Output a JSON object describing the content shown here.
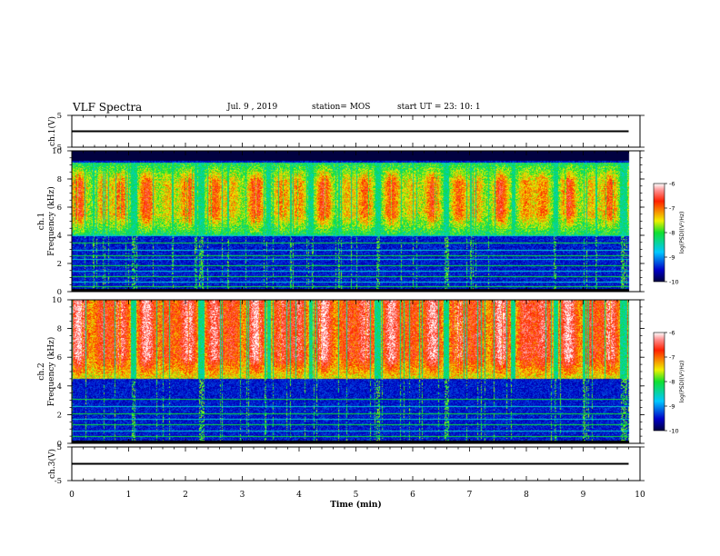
{
  "header": {
    "title": "VLF Spectra",
    "date": "Jul. 9 , 2019",
    "station": "station= MOS",
    "start": "start UT = 23: 10: 1"
  },
  "chart_data": [
    {
      "type": "line",
      "panel": "ch.1(V)",
      "ylabel": "ch.1(V)",
      "ylim": [
        -5,
        5
      ],
      "yticks": [
        "5",
        "-5"
      ],
      "series": [
        {
          "x": [
            0,
            9.8
          ],
          "y": [
            0,
            0
          ]
        }
      ]
    },
    {
      "type": "heatmap",
      "panel": "ch.1 spectrogram",
      "ylabel": "ch.1 Frequency (kHz)",
      "ylim": [
        0,
        10
      ],
      "yticks": [
        "0",
        "2",
        "4",
        "6",
        "8",
        "10"
      ],
      "xlim": [
        0,
        10
      ],
      "data_extent_min": 9.8,
      "colorbar": {
        "label": "log(PSD)(V²/Hz)",
        "range": [
          -10,
          -6
        ],
        "ticks": [
          "-6",
          "-7",
          "-8",
          "-9",
          "-10"
        ]
      },
      "signal_band_khz": [
        4,
        9.2
      ],
      "peak_band_khz": [
        5.5,
        7.8
      ],
      "cutoff_khz": 9.3,
      "horizontal_lines_khz": [
        0.4,
        0.7,
        1.1,
        1.5,
        1.9,
        2.3,
        2.6,
        3.0,
        3.5,
        4.0
      ]
    },
    {
      "type": "heatmap",
      "panel": "ch.2 spectrogram",
      "ylabel": "ch.2 Frequency (kHz)",
      "ylim": [
        0,
        10
      ],
      "yticks": [
        "0",
        "2",
        "4",
        "6",
        "8",
        "10"
      ],
      "xlim": [
        0,
        10
      ],
      "data_extent_min": 9.8,
      "colorbar": {
        "label": "log(PSD)(V²/Hz)",
        "range": [
          -10,
          -6
        ],
        "ticks": [
          "-6",
          "-7",
          "-8",
          "-9",
          "-10"
        ]
      },
      "signal_band_khz": [
        4.5,
        10
      ],
      "peak_band_khz": [
        6,
        10
      ],
      "horizontal_lines_khz": [
        0.5,
        0.9,
        1.3,
        1.7,
        2.1,
        2.6,
        3.1
      ]
    },
    {
      "type": "line",
      "panel": "ch.3(V)",
      "ylabel": "ch.3(V)",
      "ylim": [
        -5,
        5
      ],
      "yticks": [
        "5",
        "-5"
      ],
      "xlabel": "Time (min)",
      "xlim": [
        0,
        10
      ],
      "xticks": [
        "0",
        "1",
        "2",
        "3",
        "4",
        "5",
        "6",
        "7",
        "8",
        "9",
        "10"
      ],
      "series": [
        {
          "x": [
            0,
            9.8
          ],
          "y": [
            0,
            0
          ]
        }
      ]
    }
  ]
}
